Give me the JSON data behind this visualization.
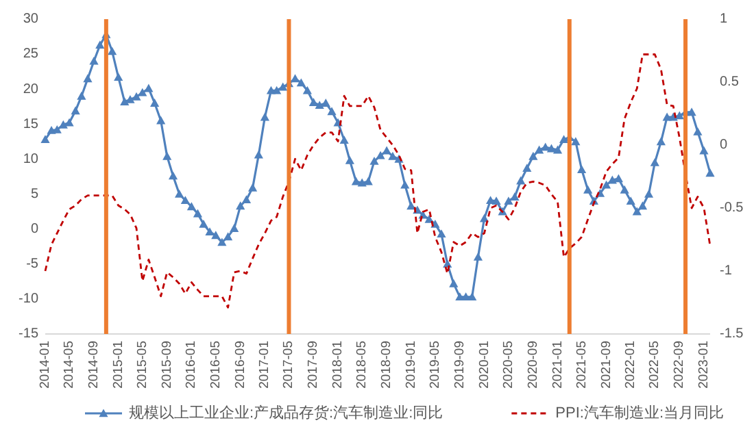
{
  "chart_data": {
    "type": "line",
    "x": [
      "2014-01",
      "2014-02",
      "2014-03",
      "2014-04",
      "2014-05",
      "2014-06",
      "2014-07",
      "2014-08",
      "2014-09",
      "2014-10",
      "2014-11",
      "2014-12",
      "2015-01",
      "2015-02",
      "2015-03",
      "2015-04",
      "2015-05",
      "2015-06",
      "2015-07",
      "2015-08",
      "2015-09",
      "2015-10",
      "2015-11",
      "2015-12",
      "2016-01",
      "2016-02",
      "2016-03",
      "2016-04",
      "2016-05",
      "2016-06",
      "2016-07",
      "2016-08",
      "2016-09",
      "2016-10",
      "2016-11",
      "2016-12",
      "2017-01",
      "2017-02",
      "2017-03",
      "2017-04",
      "2017-05",
      "2017-06",
      "2017-07",
      "2017-08",
      "2017-09",
      "2017-10",
      "2017-11",
      "2017-12",
      "2018-01",
      "2018-02",
      "2018-03",
      "2018-04",
      "2018-05",
      "2018-06",
      "2018-07",
      "2018-08",
      "2018-09",
      "2018-10",
      "2018-11",
      "2018-12",
      "2019-01",
      "2019-02",
      "2019-03",
      "2019-04",
      "2019-05",
      "2019-06",
      "2019-07",
      "2019-08",
      "2019-09",
      "2019-10",
      "2019-11",
      "2019-12",
      "2020-01",
      "2020-02",
      "2020-03",
      "2020-04",
      "2020-05",
      "2020-06",
      "2020-07",
      "2020-08",
      "2020-09",
      "2020-10",
      "2020-11",
      "2020-12",
      "2021-01",
      "2021-02",
      "2021-03",
      "2021-04",
      "2021-05",
      "2021-06",
      "2021-07",
      "2021-08",
      "2021-09",
      "2021-10",
      "2021-11",
      "2021-12",
      "2022-01",
      "2022-02",
      "2022-03",
      "2022-04",
      "2022-05",
      "2022-06",
      "2022-07",
      "2022-08",
      "2022-09",
      "2022-10",
      "2022-11",
      "2022-12",
      "2023-01",
      "2023-02"
    ],
    "series": [
      {
        "name": "规模以上工业企业:产成品存货:汽车制造业:同比",
        "color": "#4f81bd",
        "marker": "triangle",
        "line_style": "solid",
        "values": [
          12.8,
          14.1,
          14.2,
          14.9,
          15.2,
          16.9,
          19,
          21.5,
          24,
          26.3,
          27.8,
          25.4,
          21.7,
          18.2,
          18.5,
          18.9,
          19.5,
          20.1,
          18,
          15.5,
          10.4,
          7.6,
          5,
          4.1,
          3.2,
          2.2,
          0.7,
          -0.4,
          -0.9,
          -1.9,
          -1.1,
          0.1,
          3.3,
          4.2,
          5.9,
          10.6,
          16,
          19.8,
          19.8,
          20.3,
          20.8,
          21.5,
          20.9,
          19.8,
          18.1,
          17.7,
          18,
          16.8,
          15.2,
          12.7,
          9.8,
          6.8,
          6.6,
          6.8,
          9.7,
          10.5,
          11.2,
          10.4,
          10,
          6.3,
          3.3,
          2.7,
          2,
          1.4,
          0.7,
          -0.7,
          -5,
          -7.8,
          -9.7,
          -9.7,
          -9.7,
          -4,
          1.5,
          4.1,
          4,
          2.5,
          4,
          4.6,
          6.9,
          8.7,
          10.4,
          11.3,
          11.7,
          11.5,
          11.3,
          12.8,
          13.1,
          12.5,
          8.5,
          5.6,
          4,
          5.1,
          6.3,
          7,
          7.2,
          5.6,
          4,
          2.5,
          3.3,
          5,
          9.5,
          12.5,
          16,
          16,
          16.2,
          16.7,
          16.7,
          13.9,
          11.2,
          8
        ]
      },
      {
        "name": "PPI:汽车制造业:当月同比",
        "color": "#c00000",
        "marker": "none",
        "line_style": "dashed",
        "axis": "y2",
        "values": [
          -1.0,
          -0.79,
          -0.7,
          -0.6,
          -0.51,
          -0.48,
          -0.43,
          -0.4,
          -0.4,
          -0.4,
          -0.4,
          -0.4,
          -0.48,
          -0.51,
          -0.55,
          -0.66,
          -1.08,
          -0.91,
          -1.05,
          -1.2,
          -1.01,
          -1.05,
          -1.1,
          -1.18,
          -1.09,
          -1.15,
          -1.2,
          -1.2,
          -1.2,
          -1.2,
          -1.29,
          -1.01,
          -1.0,
          -1.02,
          -0.9,
          -0.79,
          -0.7,
          -0.6,
          -0.57,
          -0.41,
          -0.29,
          -0.11,
          -0.2,
          -0.08,
          0,
          0.06,
          0.1,
          0.1,
          0.03,
          0.39,
          0.31,
          0.31,
          0.31,
          0.39,
          0.3,
          0.12,
          0.06,
          0,
          -0.08,
          -0.19,
          -0.2,
          -0.7,
          -0.53,
          -0.51,
          -0.73,
          -0.85,
          -1.02,
          -0.77,
          -0.8,
          -0.77,
          -0.7,
          -0.73,
          -0.7,
          -0.5,
          -0.48,
          -0.53,
          -0.59,
          -0.5,
          -0.37,
          -0.3,
          -0.29,
          -0.3,
          -0.32,
          -0.39,
          -0.45,
          -0.89,
          -0.82,
          -0.78,
          -0.73,
          -0.59,
          -0.46,
          -0.35,
          -0.21,
          -0.15,
          -0.1,
          0.21,
          0.34,
          0.45,
          0.72,
          0.72,
          0.72,
          0.6,
          0.32,
          0.31,
          0.06,
          -0.23,
          -0.5,
          -0.41,
          -0.5,
          -0.8
        ]
      }
    ],
    "xlim": [
      "2014-01",
      "2023-02"
    ],
    "xticks": [
      "2014-01",
      "2014-05",
      "2014-09",
      "2015-01",
      "2015-05",
      "2015-09",
      "2016-01",
      "2016-05",
      "2016-09",
      "2017-01",
      "2017-05",
      "2017-09",
      "2018-01",
      "2018-05",
      "2018-09",
      "2019-01",
      "2019-05",
      "2019-09",
      "2020-01",
      "2020-05",
      "2020-09",
      "2021-01",
      "2021-05",
      "2021-09",
      "2022-01",
      "2022-05",
      "2022-09",
      "2023-01"
    ],
    "ylim": [
      -15,
      30
    ],
    "yticks": [
      -15,
      -10,
      -5,
      0,
      5,
      10,
      15,
      20,
      25,
      30
    ],
    "y2lim": [
      -1.5,
      1
    ],
    "y2ticks": [
      -1.5,
      -1,
      -0.5,
      0,
      0.5,
      1
    ],
    "ref_lines": [
      {
        "axis": "x",
        "value": "2014-11",
        "color": "#ed7d31"
      },
      {
        "axis": "x",
        "value": "2017-05",
        "color": "#ed7d31"
      },
      {
        "axis": "x",
        "value": "2021-03",
        "color": "#ed7d31"
      },
      {
        "axis": "x",
        "value": "2022-10",
        "color": "#ed7d31"
      }
    ],
    "legend": "bottom"
  }
}
